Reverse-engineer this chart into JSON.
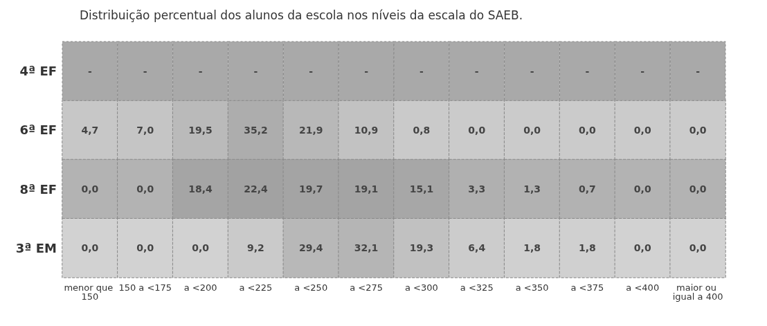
{
  "chart_data": {
    "type": "heatmap",
    "title": "Distribuição percentual dos alunos da escola nos níveis da escala do SAEB.",
    "categories": [
      "menor que 150",
      "150 a <175",
      "a <200",
      "a <225",
      "a <250",
      "a <275",
      "a <300",
      "a <325",
      "a <350",
      "a <375",
      "a <400",
      "maior ou igual a 400"
    ],
    "y_categories": [
      "4ª EF",
      "6ª EF",
      "8ª EF",
      "3ª EM"
    ],
    "colors": [
      "#a9a9a9",
      "#cbcbcb",
      "#b3b3b3",
      "#d2d2d2"
    ],
    "cells": [
      [
        null,
        null,
        null,
        null,
        null,
        null,
        null,
        null,
        null,
        null,
        null,
        null
      ],
      [
        4.7,
        7.0,
        19.5,
        35.2,
        21.9,
        10.9,
        0.8,
        0.0,
        0.0,
        0.0,
        0.0,
        0.0
      ],
      [
        0.0,
        0.0,
        18.4,
        22.4,
        19.7,
        19.1,
        15.1,
        3.3,
        1.3,
        0.7,
        0.0,
        0.0
      ],
      [
        0.0,
        0.0,
        0.0,
        9.2,
        29.4,
        32.1,
        19.3,
        6.4,
        1.8,
        1.8,
        0.0,
        0.0
      ]
    ],
    "cell_labels": [
      [
        "-",
        "-",
        "-",
        "-",
        "-",
        "-",
        "-",
        "-",
        "-",
        "-",
        "-",
        "-"
      ],
      [
        "4,7",
        "7,0",
        "19,5",
        "35,2",
        "21,9",
        "10,9",
        "0,8",
        "0,0",
        "0,0",
        "0,0",
        "0,0",
        "0,0"
      ],
      [
        "0,0",
        "0,0",
        "18,4",
        "22,4",
        "19,7",
        "19,1",
        "15,1",
        "3,3",
        "1,3",
        "0,7",
        "0,0",
        "0,0"
      ],
      [
        "0,0",
        "0,0",
        "0,0",
        "9,2",
        "29,4",
        "32,1",
        "19,3",
        "6,4",
        "1,8",
        "1,8",
        "0,0",
        "0,0"
      ]
    ]
  }
}
